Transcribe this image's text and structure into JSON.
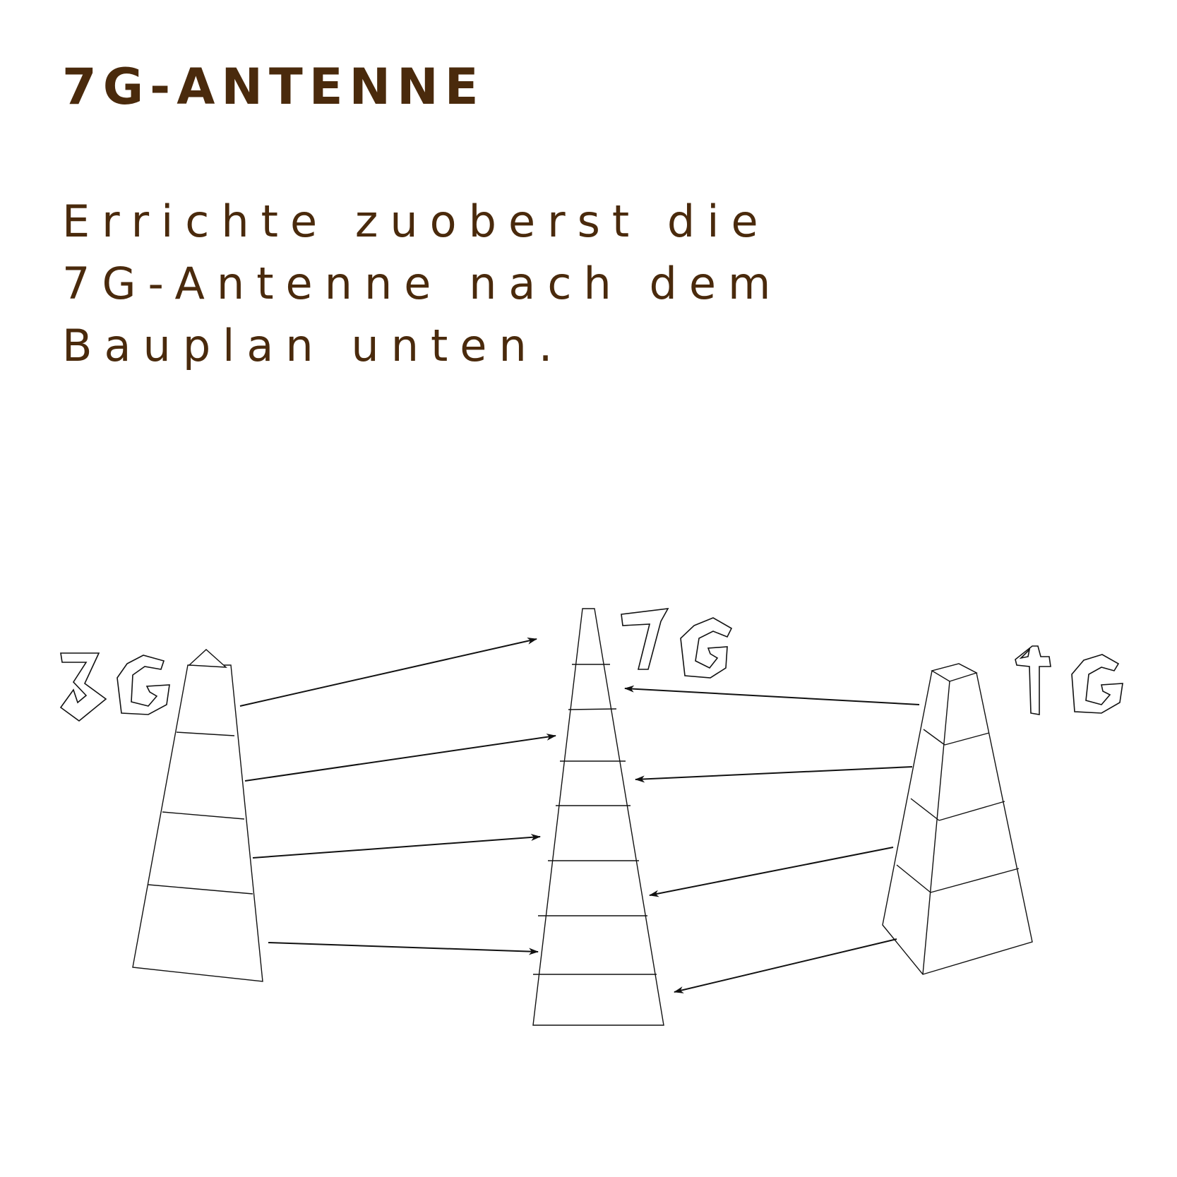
{
  "title": "7G-ANTENNE",
  "instruction": {
    "lines": [
      "Errichte zuoberst die",
      "7G-Antenne nach dem",
      "Bauplan unten."
    ]
  },
  "labels": {
    "left": "3G",
    "center": "7G",
    "right": "4G"
  },
  "colors": {
    "text": "#4a2a0c",
    "line": "#111111"
  }
}
